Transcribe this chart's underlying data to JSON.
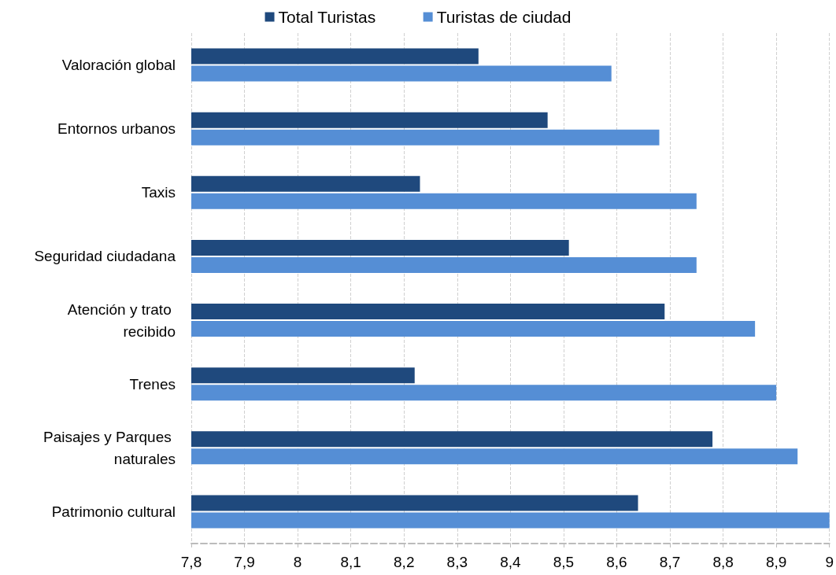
{
  "chart_data": {
    "type": "bar",
    "orientation": "horizontal",
    "categories": [
      "Valoración global",
      "Entornos urbanos",
      "Taxis",
      "Seguridad ciudadana",
      "Atención y trato recibido",
      "Trenes",
      "Paisajes y Parques naturales",
      "Patrimonio cultural"
    ],
    "series": [
      {
        "name": "Total Turistas",
        "color": "#1f497d",
        "values": [
          8.34,
          8.47,
          8.23,
          8.51,
          8.69,
          8.22,
          8.78,
          8.64
        ]
      },
      {
        "name": "Turistas de ciudad",
        "color": "#558ed5",
        "values": [
          8.59,
          8.68,
          8.75,
          8.75,
          8.86,
          8.9,
          8.94,
          9.0
        ]
      }
    ],
    "xlim": [
      7.8,
      9
    ],
    "xticks": [
      {
        "value": 7.8,
        "label": "7,8"
      },
      {
        "value": 7.9,
        "label": "7,9"
      },
      8,
      {
        "value": 8.1,
        "label": "8,1"
      },
      {
        "value": 8.2,
        "label": "8,2"
      },
      {
        "value": 8.3,
        "label": "8,3"
      },
      {
        "value": 8.4,
        "label": "8,4"
      },
      {
        "value": 8.5,
        "label": "8,5"
      },
      {
        "value": 8.6,
        "label": "8,6"
      },
      {
        "value": 8.7,
        "label": "8,7"
      },
      {
        "value": 8.8,
        "label": "8,8"
      },
      {
        "value": 8.9,
        "label": "8,9"
      },
      9
    ],
    "grid": "x",
    "legend": "top"
  }
}
